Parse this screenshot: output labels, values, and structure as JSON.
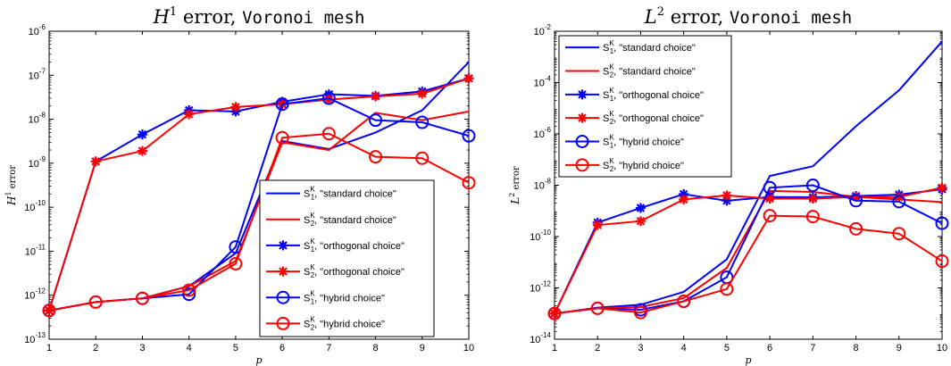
{
  "chart_data": [
    {
      "type": "line",
      "title": {
        "math": "H",
        "sup": "1",
        "word": " error, ",
        "code": "Voronoi mesh"
      },
      "xlabel": "p",
      "ylabel": {
        "math": "H",
        "sup": "1",
        "word": " error"
      },
      "xlim": [
        1,
        10
      ],
      "ylim": [
        1e-13,
        1e-06
      ],
      "yscale": "log",
      "grid": false,
      "legend_position": "bottom-right",
      "x": [
        1,
        2,
        3,
        4,
        5,
        6,
        7,
        8,
        9,
        10
      ],
      "x_ticks": [
        "1",
        "2",
        "3",
        "4",
        "5",
        "6",
        "7",
        "8",
        "9",
        "10"
      ],
      "y_ticks": [
        {
          "base": "10",
          "exp": "-13",
          "value": 1e-13
        },
        {
          "base": "10",
          "exp": "-12",
          "value": 1e-12
        },
        {
          "base": "10",
          "exp": "-11",
          "value": 1e-11
        },
        {
          "base": "10",
          "exp": "-10",
          "value": 1e-10
        },
        {
          "base": "10",
          "exp": "-9",
          "value": 1e-09
        },
        {
          "base": "10",
          "exp": "-8",
          "value": 1e-08
        },
        {
          "base": "10",
          "exp": "-7",
          "value": 1e-07
        },
        {
          "base": "10",
          "exp": "-6",
          "value": 1e-06
        }
      ],
      "series": [
        {
          "name": "S1K, \"standard choice\"",
          "color": "#0000ff",
          "marker": "none",
          "values": [
            4.5e-13,
            7e-13,
            8.5e-13,
            1.6e-12,
            9e-12,
            3.2e-09,
            2.1e-09,
            5e-09,
            1.6e-08,
            2e-07
          ]
        },
        {
          "name": "S2K, \"standard choice\"",
          "color": "#ff0000",
          "marker": "none",
          "values": [
            4.5e-13,
            7e-13,
            8.5e-13,
            1.6e-12,
            6e-12,
            3e-09,
            2e-09,
            1.4e-08,
            9.5e-09,
            1.5e-08
          ]
        },
        {
          "name": "S1K, \"orthogonal choice\"",
          "color": "#0000ff",
          "marker": "star",
          "values": [
            4.5e-13,
            1.1e-09,
            4.5e-09,
            1.6e-08,
            1.5e-08,
            2.5e-08,
            3.7e-08,
            3.4e-08,
            4.3e-08,
            8.5e-08
          ]
        },
        {
          "name": "S2K, \"orthogonal choice\"",
          "color": "#ff0000",
          "marker": "star",
          "values": [
            4.5e-13,
            1.1e-09,
            1.9e-09,
            1.3e-08,
            1.9e-08,
            2.2e-08,
            2.8e-08,
            3.3e-08,
            3.8e-08,
            8.5e-08
          ]
        },
        {
          "name": "S1K, \"hybrid choice\"",
          "color": "#0000ff",
          "marker": "circle",
          "values": [
            4.5e-13,
            7e-13,
            8.5e-13,
            1.05e-12,
            1.25e-11,
            2.2e-08,
            3e-08,
            9.5e-09,
            8.5e-09,
            4.2e-09
          ]
        },
        {
          "name": "S2K, \"hybrid choice\"",
          "color": "#ff0000",
          "marker": "circle",
          "values": [
            4.5e-13,
            7e-13,
            8.5e-13,
            1.3e-12,
            5.2e-12,
            3.8e-09,
            4.7e-09,
            1.4e-09,
            1.3e-09,
            3.6e-10
          ]
        }
      ]
    },
    {
      "type": "line",
      "title": {
        "math": "L",
        "sup": "2",
        "word": " error, ",
        "code": "Voronoi mesh"
      },
      "xlabel": "p",
      "ylabel": {
        "math": "L",
        "sup": "2",
        "word": " error"
      },
      "xlim": [
        1,
        10
      ],
      "ylim": [
        1e-14,
        0.01
      ],
      "yscale": "log",
      "grid": false,
      "legend_position": "top-left",
      "x": [
        1,
        2,
        3,
        4,
        5,
        6,
        7,
        8,
        9,
        10
      ],
      "x_ticks": [
        "1",
        "2",
        "3",
        "4",
        "5",
        "6",
        "7",
        "8",
        "9",
        "10"
      ],
      "y_ticks": [
        {
          "base": "10",
          "exp": "-14",
          "value": 1e-14
        },
        {
          "base": "10",
          "exp": "-12",
          "value": 1e-12
        },
        {
          "base": "10",
          "exp": "-10",
          "value": 1e-10
        },
        {
          "base": "10",
          "exp": "-8",
          "value": 1e-08
        },
        {
          "base": "10",
          "exp": "-6",
          "value": 1e-06
        },
        {
          "base": "10",
          "exp": "-4",
          "value": 0.0001
        },
        {
          "base": "10",
          "exp": "-2",
          "value": 0.01
        }
      ],
      "series": [
        {
          "name": "S1K, \"standard choice\"",
          "color": "#0000ff",
          "marker": "none",
          "values": [
            1e-13,
            1.7e-13,
            2.2e-13,
            7e-13,
            1.3e-11,
            2.3e-08,
            5.5e-08,
            2e-06,
            5e-05,
            0.004
          ]
        },
        {
          "name": "S2K, \"standard choice\"",
          "color": "#ff0000",
          "marker": "none",
          "values": [
            1e-13,
            1.6e-13,
            1.8e-13,
            4e-13,
            6e-12,
            6e-09,
            5.5e-09,
            3.5e-09,
            2.8e-09,
            2.2e-09
          ]
        },
        {
          "name": "S1K, \"orthogonal choice\"",
          "color": "#0000ff",
          "marker": "star",
          "values": [
            1e-13,
            3.5e-10,
            1.3e-09,
            4.5e-09,
            2.5e-09,
            3.5e-09,
            3.4e-09,
            3.8e-09,
            4.3e-09,
            7e-09
          ]
        },
        {
          "name": "S2K, \"orthogonal choice\"",
          "color": "#ff0000",
          "marker": "star",
          "values": [
            1e-13,
            2.8e-10,
            4e-10,
            2.8e-09,
            4e-09,
            3e-09,
            3e-09,
            3.5e-09,
            3.5e-09,
            8e-09
          ]
        },
        {
          "name": "S1K, \"hybrid choice\"",
          "color": "#0000ff",
          "marker": "circle",
          "values": [
            1e-13,
            1.6e-13,
            1.4e-13,
            3e-13,
            2.6e-12,
            8e-09,
            1e-08,
            2.5e-09,
            2.3e-09,
            3.3e-10
          ]
        },
        {
          "name": "S2K, \"hybrid choice\"",
          "color": "#ff0000",
          "marker": "circle",
          "values": [
            1e-13,
            1.6e-13,
            1.1e-13,
            3e-13,
            9e-13,
            6.5e-10,
            6e-10,
            2e-10,
            1.3e-10,
            1.1e-11
          ]
        }
      ]
    }
  ],
  "legend_labels": [
    {
      "s": "S",
      "sub": "1",
      "sup": "K",
      "text": ", \"standard choice\""
    },
    {
      "s": "S",
      "sub": "2",
      "sup": "K",
      "text": ", \"standard choice\""
    },
    {
      "s": "S",
      "sub": "1",
      "sup": "K",
      "text": ", \"orthogonal choice\""
    },
    {
      "s": "S",
      "sub": "2",
      "sup": "K",
      "text": ", \"orthogonal choice\""
    },
    {
      "s": "S",
      "sub": "1",
      "sup": "K",
      "text": ", \"hybrid choice\""
    },
    {
      "s": "S",
      "sub": "2",
      "sup": "K",
      "text": ", \"hybrid choice\""
    }
  ]
}
